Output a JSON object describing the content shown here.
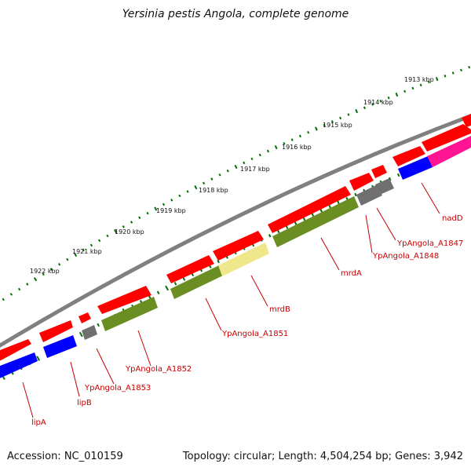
{
  "title": "Yersinia pestis Angola, complete genome",
  "accession": "Accession: NC_010159",
  "summary": "Topology: circular; Length: 4,504,254 bp; Genes: 3,942",
  "kbp_labels": [
    "1913 kbp",
    "1914 kbp",
    "1915 kbp",
    "1916 kbp",
    "1917 kbp",
    "1918 kbp",
    "1919 kbp",
    "1920 kbp",
    "1921 kbp",
    "1922 kbp"
  ],
  "gene_labels": [
    "nadD",
    "YpAngola_A1847",
    "YpAngola_A1848",
    "mrdA",
    "mrdB",
    "YpAngola_A1851",
    "YpAngola_A1852",
    "YpAngola_A1853",
    "lipB",
    "lipA"
  ],
  "colors": {
    "cds_forward": "#ff0000",
    "cds_reverse": "#0000ff",
    "pseudogene": "#707070",
    "olive_feature": "#6b8e23",
    "pale_feature": "#f0e68c",
    "pink_feature": "#ff1493",
    "backbone": "#808080",
    "tick": "#007000",
    "label_text": "#c80000"
  }
}
